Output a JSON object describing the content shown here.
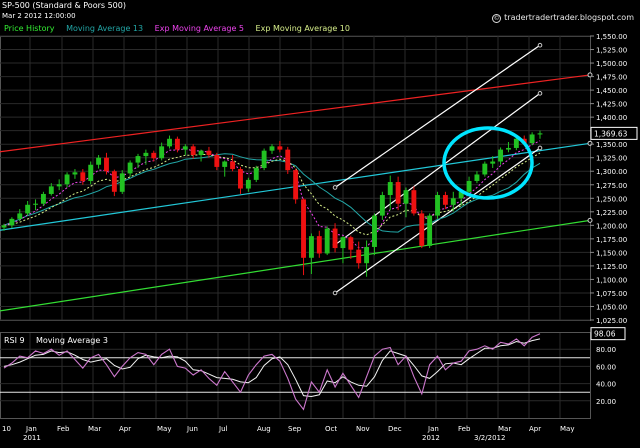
{
  "header": {
    "title": "SP-500 (Standard & Poors 500)",
    "date": "Mar 2 2012 12:00:00",
    "site": "tradertradertrader.blogspot.com",
    "legend": [
      {
        "label": "Price History",
        "color": "#33ee33"
      },
      {
        "label": "Moving Average 13",
        "color": "#22a6a6"
      },
      {
        "label": "Exp Moving Average 5",
        "color": "#ee44ee"
      },
      {
        "label": "Exp Moving Average 10",
        "color": "#d6ee8a"
      }
    ]
  },
  "rsi_panel": {
    "label": "RSI 9",
    "ma_label": "Moving Average 3",
    "last_value": "98.06",
    "yticks": [
      "80.00",
      "60.00",
      "40.00",
      "20.00"
    ]
  },
  "chart_data": [
    {
      "type": "candlestick",
      "title": "SP-500 (Standard & Poors 500)",
      "ylim": [
        1025,
        1550
      ],
      "y_ticks": [
        "1,550.00",
        "1,525.00",
        "1,500.00",
        "1,475.00",
        "1,450.00",
        "1,425.00",
        "1,400.00",
        "1,375.00",
        "1,350.00",
        "1,325.00",
        "1,300.00",
        "1,275.00",
        "1,250.00",
        "1,225.00",
        "1,200.00",
        "1,175.00",
        "1,150.00",
        "1,125.00",
        "1,100.00",
        "1,075.00",
        "1,050.00",
        "1,025.00"
      ],
      "last_price_label": "1,369.63",
      "x_ticks": [
        "10",
        "Jan",
        "2011",
        "Feb",
        "Mar",
        "Apr",
        "May",
        "Jun",
        "Jul",
        "Aug",
        "Sep",
        "Oct",
        "Nov",
        "Dec",
        "Jan",
        "2012",
        "Feb",
        "3/2/2012",
        "Mar",
        "Apr",
        "May"
      ],
      "candles": [
        [
          1196,
          1203,
          1190,
          1200
        ],
        [
          1200,
          1215,
          1195,
          1212
        ],
        [
          1212,
          1230,
          1208,
          1222
        ],
        [
          1222,
          1245,
          1218,
          1238
        ],
        [
          1238,
          1248,
          1228,
          1240
        ],
        [
          1240,
          1262,
          1236,
          1258
        ],
        [
          1258,
          1278,
          1255,
          1272
        ],
        [
          1272,
          1285,
          1265,
          1276
        ],
        [
          1276,
          1298,
          1270,
          1294
        ],
        [
          1294,
          1304,
          1286,
          1298
        ],
        [
          1298,
          1304,
          1275,
          1282
        ],
        [
          1282,
          1318,
          1276,
          1312
        ],
        [
          1312,
          1330,
          1305,
          1325
        ],
        [
          1325,
          1334,
          1294,
          1300
        ],
        [
          1300,
          1303,
          1254,
          1262
        ],
        [
          1262,
          1302,
          1258,
          1296
        ],
        [
          1296,
          1320,
          1290,
          1316
        ],
        [
          1316,
          1332,
          1306,
          1328
        ],
        [
          1328,
          1340,
          1312,
          1334
        ],
        [
          1334,
          1338,
          1318,
          1324
        ],
        [
          1324,
          1353,
          1320,
          1346
        ],
        [
          1346,
          1366,
          1342,
          1360
        ],
        [
          1360,
          1364,
          1335,
          1340
        ],
        [
          1340,
          1350,
          1330,
          1346
        ],
        [
          1346,
          1350,
          1323,
          1330
        ],
        [
          1330,
          1340,
          1318,
          1338
        ],
        [
          1338,
          1345,
          1325,
          1330
        ],
        [
          1330,
          1334,
          1302,
          1308
        ],
        [
          1308,
          1320,
          1290,
          1318
        ],
        [
          1318,
          1330,
          1300,
          1304
        ],
        [
          1304,
          1308,
          1258,
          1268
        ],
        [
          1268,
          1288,
          1262,
          1284
        ],
        [
          1284,
          1310,
          1280,
          1306
        ],
        [
          1306,
          1342,
          1302,
          1338
        ],
        [
          1338,
          1350,
          1332,
          1346
        ],
        [
          1346,
          1356,
          1335,
          1340
        ],
        [
          1340,
          1345,
          1295,
          1302
        ],
        [
          1302,
          1305,
          1240,
          1248
        ],
        [
          1248,
          1250,
          1108,
          1140
        ],
        [
          1140,
          1185,
          1110,
          1180
        ],
        [
          1180,
          1190,
          1140,
          1148
        ],
        [
          1148,
          1198,
          1145,
          1194
        ],
        [
          1194,
          1204,
          1150,
          1158
        ],
        [
          1158,
          1180,
          1130,
          1178
        ],
        [
          1178,
          1181,
          1138,
          1155
        ],
        [
          1155,
          1170,
          1120,
          1130
        ],
        [
          1130,
          1172,
          1105,
          1160
        ],
        [
          1160,
          1222,
          1145,
          1218
        ],
        [
          1218,
          1262,
          1210,
          1256
        ],
        [
          1256,
          1292,
          1228,
          1280
        ],
        [
          1280,
          1290,
          1228,
          1240
        ],
        [
          1240,
          1270,
          1215,
          1265
        ],
        [
          1265,
          1272,
          1218,
          1222
        ],
        [
          1222,
          1228,
          1158,
          1162
        ],
        [
          1162,
          1222,
          1158,
          1218
        ],
        [
          1218,
          1262,
          1212,
          1256
        ],
        [
          1256,
          1262,
          1230,
          1238
        ],
        [
          1238,
          1262,
          1226,
          1250
        ],
        [
          1250,
          1265,
          1236,
          1262
        ],
        [
          1262,
          1290,
          1258,
          1282
        ],
        [
          1282,
          1300,
          1278,
          1294
        ],
        [
          1294,
          1318,
          1290,
          1314
        ],
        [
          1314,
          1328,
          1306,
          1318
        ],
        [
          1318,
          1344,
          1312,
          1340
        ],
        [
          1340,
          1354,
          1335,
          1343
        ],
        [
          1343,
          1365,
          1339,
          1360
        ],
        [
          1360,
          1366,
          1350,
          1352
        ],
        [
          1352,
          1372,
          1348,
          1368
        ],
        [
          1368,
          1375,
          1360,
          1370
        ]
      ],
      "overlays": [
        {
          "name": "Moving Average 13",
          "type": "line"
        },
        {
          "name": "Exp Moving Average 5",
          "type": "line"
        },
        {
          "name": "Exp Moving Average 10",
          "type": "line"
        }
      ],
      "trendlines": [
        {
          "color": "#ee2222",
          "from": [
            0,
            1337
          ],
          "to": [
            68,
            1466
          ]
        },
        {
          "color": "#22c8d8",
          "from": [
            0,
            1192
          ],
          "to": [
            68,
            1338
          ]
        },
        {
          "color": "#33dd33",
          "from": [
            0,
            1043
          ],
          "to": [
            68,
            1195
          ]
        },
        {
          "color": "#ffffff",
          "from": [
            42,
            1270
          ],
          "to": [
            68,
            1533
          ]
        },
        {
          "color": "#ffffff",
          "from": [
            42,
            1164
          ],
          "to": [
            68,
            1444
          ]
        },
        {
          "color": "#ffffff",
          "from": [
            42,
            1075
          ],
          "to": [
            68,
            1343
          ]
        }
      ]
    },
    {
      "type": "line",
      "title": "RSI 9",
      "ylim": [
        0,
        100
      ],
      "hlines": [
        70,
        30
      ],
      "series": [
        {
          "name": "RSI 9",
          "color": "#cc77cc",
          "values": [
            58,
            64,
            72,
            70,
            78,
            75,
            80,
            73,
            78,
            68,
            58,
            70,
            74,
            62,
            48,
            60,
            70,
            76,
            74,
            62,
            74,
            80,
            60,
            58,
            50,
            56,
            46,
            38,
            54,
            42,
            30,
            50,
            62,
            72,
            74,
            66,
            46,
            22,
            10,
            42,
            30,
            56,
            36,
            52,
            38,
            24,
            48,
            72,
            80,
            82,
            62,
            72,
            48,
            28,
            62,
            72,
            56,
            64,
            66,
            78,
            80,
            84,
            80,
            88,
            86,
            92,
            84,
            94,
            98.06
          ]
        },
        {
          "name": "Moving Average 3",
          "color": "#f2f2f2",
          "values": [
            60,
            62,
            65,
            69,
            73,
            74,
            78,
            76,
            77,
            73,
            68,
            65,
            67,
            69,
            61,
            57,
            59,
            69,
            73,
            71,
            70,
            72,
            71,
            66,
            56,
            55,
            51,
            47,
            46,
            45,
            42,
            41,
            47,
            61,
            69,
            71,
            62,
            45,
            26,
            25,
            27,
            43,
            41,
            48,
            42,
            38,
            37,
            48,
            67,
            78,
            75,
            72,
            61,
            49,
            46,
            54,
            63,
            64,
            62,
            69,
            75,
            81,
            81,
            84,
            85,
            89,
            87,
            90,
            92
          ]
        }
      ]
    }
  ]
}
